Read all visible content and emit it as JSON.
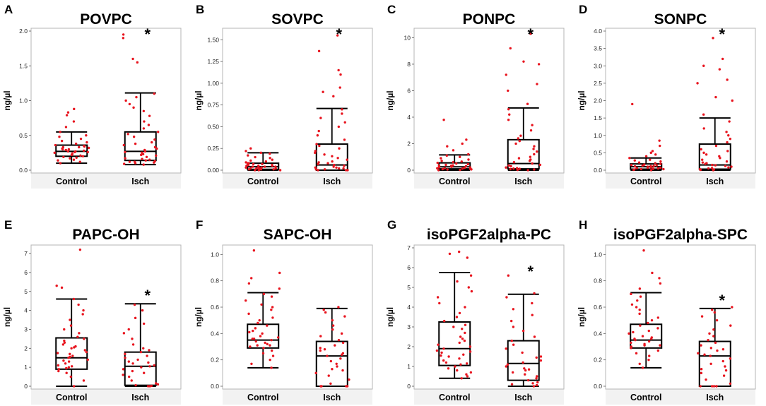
{
  "chart_data": [
    {
      "type": "box",
      "letter": "A",
      "title": "POVPC",
      "ylabel": "ng/µl",
      "ylim": [
        0,
        2.0
      ],
      "yticks": [
        "0.0",
        "0.5",
        "1.0",
        "1.5",
        "2.0"
      ],
      "ytick_values": [
        0,
        0.5,
        1.0,
        1.5,
        2.0
      ],
      "categories": [
        "Control",
        "Isch"
      ],
      "groups": [
        {
          "name": "Control",
          "min": 0.1,
          "q1": 0.2,
          "median": 0.27,
          "q3": 0.36,
          "max": 0.55,
          "points": [
            0.1,
            0.12,
            0.15,
            0.17,
            0.19,
            0.2,
            0.21,
            0.22,
            0.23,
            0.24,
            0.25,
            0.26,
            0.27,
            0.27,
            0.28,
            0.29,
            0.3,
            0.31,
            0.32,
            0.33,
            0.34,
            0.35,
            0.36,
            0.38,
            0.4,
            0.42,
            0.45,
            0.48,
            0.5,
            0.55,
            0.62,
            0.7,
            0.79,
            0.83,
            0.88,
            0.14,
            0.18,
            0.26,
            0.3,
            0.33
          ]
        },
        {
          "name": "Isch",
          "min": 0.08,
          "q1": 0.14,
          "median": 0.27,
          "q3": 0.55,
          "max": 1.11,
          "points": [
            0.08,
            0.09,
            0.1,
            0.11,
            0.12,
            0.13,
            0.14,
            0.15,
            0.17,
            0.19,
            0.21,
            0.23,
            0.25,
            0.27,
            0.29,
            0.31,
            0.33,
            0.36,
            0.4,
            0.44,
            0.48,
            0.52,
            0.55,
            0.6,
            0.65,
            0.7,
            0.78,
            0.85,
            0.9,
            0.95,
            1.0,
            1.05,
            1.1,
            1.55,
            1.6,
            1.9,
            1.95,
            0.16,
            0.22,
            0.38,
            0.12,
            0.26
          ]
        }
      ],
      "significance": {
        "group": "Isch",
        "label": "*"
      }
    },
    {
      "type": "box",
      "letter": "B",
      "title": "SOVPC",
      "ylabel": "ng/µl",
      "ylim": [
        0,
        1.6
      ],
      "yticks": [
        "0.00",
        "0.25",
        "0.50",
        "0.75",
        "1.00",
        "1.25",
        "1.50"
      ],
      "ytick_values": [
        0,
        0.25,
        0.5,
        0.75,
        1.0,
        1.25,
        1.5
      ],
      "categories": [
        "Control",
        "Isch"
      ],
      "groups": [
        {
          "name": "Control",
          "min": 0.0,
          "q1": 0.01,
          "median": 0.04,
          "q3": 0.08,
          "max": 0.2,
          "points": [
            0.0,
            0.0,
            0.01,
            0.01,
            0.01,
            0.02,
            0.02,
            0.02,
            0.03,
            0.03,
            0.03,
            0.04,
            0.04,
            0.04,
            0.05,
            0.05,
            0.06,
            0.06,
            0.07,
            0.07,
            0.08,
            0.08,
            0.09,
            0.1,
            0.11,
            0.12,
            0.14,
            0.15,
            0.17,
            0.19,
            0.2,
            0.22,
            0.25,
            0.0,
            0.02,
            0.05
          ]
        },
        {
          "name": "Isch",
          "min": 0.0,
          "q1": 0.0,
          "median": 0.06,
          "q3": 0.3,
          "max": 0.71,
          "points": [
            0.0,
            0.0,
            0.0,
            0.01,
            0.01,
            0.02,
            0.02,
            0.03,
            0.04,
            0.05,
            0.06,
            0.07,
            0.08,
            0.1,
            0.12,
            0.14,
            0.16,
            0.18,
            0.2,
            0.22,
            0.25,
            0.28,
            0.3,
            0.35,
            0.4,
            0.45,
            0.5,
            0.55,
            0.6,
            0.65,
            0.7,
            0.85,
            0.9,
            0.95,
            1.1,
            1.15,
            1.37,
            1.55,
            0.03,
            0.09
          ]
        }
      ],
      "significance": {
        "group": "Isch",
        "label": "*"
      }
    },
    {
      "type": "box",
      "letter": "C",
      "title": "PONPC",
      "ylabel": "ng/µl",
      "ylim": [
        0,
        10.5
      ],
      "yticks": [
        "0",
        "2",
        "4",
        "6",
        "8",
        "10"
      ],
      "ytick_values": [
        0,
        2,
        4,
        6,
        8,
        10
      ],
      "categories": [
        "Control",
        "Isch"
      ],
      "groups": [
        {
          "name": "Control",
          "min": 0.0,
          "q1": 0.1,
          "median": 0.25,
          "q3": 0.55,
          "max": 1.15,
          "points": [
            0.0,
            0.02,
            0.05,
            0.08,
            0.1,
            0.12,
            0.15,
            0.18,
            0.2,
            0.22,
            0.25,
            0.27,
            0.3,
            0.33,
            0.36,
            0.4,
            0.45,
            0.5,
            0.55,
            0.6,
            0.65,
            0.7,
            0.8,
            0.9,
            1.0,
            1.1,
            1.2,
            1.5,
            1.8,
            2.0,
            2.3,
            3.8,
            0.06,
            0.14,
            0.35
          ]
        },
        {
          "name": "Isch",
          "min": 0.0,
          "q1": 0.1,
          "median": 0.5,
          "q3": 2.3,
          "max": 4.7,
          "points": [
            0.0,
            0.02,
            0.05,
            0.1,
            0.15,
            0.2,
            0.3,
            0.4,
            0.5,
            0.6,
            0.7,
            0.8,
            0.9,
            1.0,
            1.2,
            1.4,
            1.6,
            1.8,
            2.0,
            2.2,
            2.4,
            2.6,
            3.0,
            3.4,
            3.8,
            4.2,
            4.6,
            5.0,
            6.0,
            6.5,
            7.2,
            8.0,
            8.2,
            9.2,
            10.3,
            0.12,
            0.35,
            0.08
          ]
        }
      ],
      "significance": {
        "group": "Isch",
        "label": "*"
      }
    },
    {
      "type": "box",
      "letter": "D",
      "title": "SONPC",
      "ylabel": "ng/µl",
      "ylim": [
        0,
        4.0
      ],
      "yticks": [
        "0.0",
        "0.5",
        "1.0",
        "1.5",
        "2.0",
        "2.5",
        "3.0",
        "3.5",
        "4.0"
      ],
      "ytick_values": [
        0,
        0.5,
        1.0,
        1.5,
        2.0,
        2.5,
        3.0,
        3.5,
        4.0
      ],
      "categories": [
        "Control",
        "Isch"
      ],
      "groups": [
        {
          "name": "Control",
          "min": 0.0,
          "q1": 0.03,
          "median": 0.1,
          "q3": 0.18,
          "max": 0.35,
          "points": [
            0.0,
            0.01,
            0.02,
            0.03,
            0.04,
            0.05,
            0.06,
            0.07,
            0.08,
            0.09,
            0.1,
            0.11,
            0.12,
            0.13,
            0.14,
            0.15,
            0.16,
            0.18,
            0.2,
            0.22,
            0.25,
            0.28,
            0.3,
            0.35,
            0.4,
            0.45,
            0.5,
            0.55,
            0.7,
            0.85,
            1.9,
            0.03,
            0.07,
            0.12
          ]
        },
        {
          "name": "Isch",
          "min": 0.0,
          "q1": 0.03,
          "median": 0.15,
          "q3": 0.75,
          "max": 1.5,
          "points": [
            0.0,
            0.01,
            0.02,
            0.03,
            0.05,
            0.08,
            0.1,
            0.12,
            0.15,
            0.18,
            0.2,
            0.25,
            0.3,
            0.35,
            0.4,
            0.45,
            0.5,
            0.55,
            0.6,
            0.7,
            0.8,
            0.9,
            1.0,
            1.1,
            1.2,
            1.4,
            1.6,
            2.0,
            2.1,
            2.5,
            2.6,
            2.9,
            3.0,
            3.2,
            3.8,
            0.06,
            0.14,
            0.22
          ]
        }
      ],
      "significance": {
        "group": "Isch",
        "label": "*"
      }
    },
    {
      "type": "box",
      "letter": "E",
      "title": "PAPC-OH",
      "ylabel": "ng/µl",
      "ylim": [
        0,
        7.3
      ],
      "yticks": [
        "0",
        "1",
        "2",
        "3",
        "4",
        "5",
        "6",
        "7"
      ],
      "ytick_values": [
        0,
        1,
        2,
        3,
        4,
        5,
        6,
        7
      ],
      "categories": [
        "Control",
        "Isch"
      ],
      "groups": [
        {
          "name": "Control",
          "min": 0.0,
          "q1": 0.9,
          "median": 1.5,
          "q3": 2.55,
          "max": 4.6,
          "points": [
            0.0,
            0.3,
            0.5,
            0.7,
            0.8,
            0.9,
            1.0,
            1.1,
            1.2,
            1.3,
            1.4,
            1.5,
            1.55,
            1.6,
            1.7,
            1.8,
            1.9,
            2.0,
            2.1,
            2.2,
            2.3,
            2.4,
            2.5,
            2.6,
            2.8,
            3.0,
            3.2,
            3.5,
            3.8,
            4.0,
            4.3,
            4.6,
            5.2,
            5.3,
            7.2,
            1.05,
            1.35,
            1.75,
            2.05,
            0.95
          ]
        },
        {
          "name": "Isch",
          "min": 0.0,
          "q1": 0.05,
          "median": 1.05,
          "q3": 1.8,
          "max": 4.35,
          "points": [
            0.0,
            0.0,
            0.02,
            0.05,
            0.1,
            0.3,
            0.5,
            0.7,
            0.8,
            0.9,
            1.0,
            1.05,
            1.1,
            1.2,
            1.3,
            1.4,
            1.5,
            1.6,
            1.7,
            1.8,
            1.9,
            2.0,
            2.2,
            2.5,
            2.8,
            3.0,
            3.3,
            3.6,
            4.0,
            4.3,
            0.6,
            1.25,
            0.15
          ]
        }
      ],
      "significance": {
        "group": "Isch",
        "label": "*"
      }
    },
    {
      "type": "box",
      "letter": "F",
      "title": "SAPC-OH",
      "ylabel": "ng/µl",
      "ylim": [
        0,
        1.05
      ],
      "yticks": [
        "0.0",
        "0.2",
        "0.4",
        "0.6",
        "0.8",
        "1.0"
      ],
      "ytick_values": [
        0,
        0.2,
        0.4,
        0.6,
        0.8,
        1.0
      ],
      "categories": [
        "Control",
        "Isch"
      ],
      "groups": [
        {
          "name": "Control",
          "min": 0.14,
          "q1": 0.29,
          "median": 0.35,
          "q3": 0.47,
          "max": 0.71,
          "points": [
            0.14,
            0.17,
            0.2,
            0.23,
            0.25,
            0.27,
            0.29,
            0.3,
            0.31,
            0.32,
            0.33,
            0.34,
            0.35,
            0.36,
            0.37,
            0.38,
            0.4,
            0.42,
            0.44,
            0.46,
            0.48,
            0.5,
            0.52,
            0.55,
            0.58,
            0.6,
            0.62,
            0.65,
            0.68,
            0.7,
            0.74,
            0.78,
            0.82,
            0.86,
            1.03,
            0.31,
            0.36,
            0.41
          ]
        },
        {
          "name": "Isch",
          "min": 0.0,
          "q1": 0.0,
          "median": 0.23,
          "q3": 0.34,
          "max": 0.59,
          "points": [
            0.0,
            0.0,
            0.0,
            0.0,
            0.02,
            0.05,
            0.08,
            0.1,
            0.13,
            0.15,
            0.17,
            0.19,
            0.21,
            0.23,
            0.24,
            0.25,
            0.27,
            0.29,
            0.31,
            0.33,
            0.35,
            0.38,
            0.4,
            0.43,
            0.46,
            0.5,
            0.53,
            0.56,
            0.58,
            0.6,
            0.12,
            0.28
          ]
        }
      ],
      "significance": null
    },
    {
      "type": "box",
      "letter": "G",
      "title": "isoPGF2alpha-PC",
      "ylabel": "ng/µl",
      "ylim": [
        0,
        7.0
      ],
      "yticks": [
        "0",
        "1",
        "2",
        "3",
        "4",
        "5",
        "6",
        "7"
      ],
      "ytick_values": [
        0,
        1,
        2,
        3,
        4,
        5,
        6,
        7
      ],
      "categories": [
        "Control",
        "Isch"
      ],
      "groups": [
        {
          "name": "Control",
          "min": 0.4,
          "q1": 1.05,
          "median": 1.9,
          "q3": 3.25,
          "max": 5.75,
          "points": [
            0.4,
            0.5,
            0.6,
            0.8,
            0.9,
            1.0,
            1.1,
            1.2,
            1.3,
            1.4,
            1.5,
            1.6,
            1.7,
            1.8,
            1.9,
            2.0,
            2.1,
            2.2,
            2.3,
            2.5,
            2.7,
            2.9,
            3.1,
            3.3,
            3.5,
            3.7,
            4.0,
            4.2,
            4.5,
            4.8,
            5.0,
            5.3,
            5.6,
            6.5,
            6.7,
            6.8,
            1.15,
            1.75,
            2.4,
            3.0,
            0.7,
            1.55
          ]
        },
        {
          "name": "Isch",
          "min": 0.0,
          "q1": 0.3,
          "median": 1.15,
          "q3": 2.3,
          "max": 4.65,
          "points": [
            0.0,
            0.05,
            0.1,
            0.2,
            0.3,
            0.4,
            0.5,
            0.6,
            0.7,
            0.8,
            0.9,
            1.0,
            1.1,
            1.2,
            1.3,
            1.5,
            1.7,
            1.9,
            2.1,
            2.3,
            2.5,
            2.8,
            3.0,
            3.3,
            3.6,
            3.9,
            4.2,
            4.5,
            4.7,
            5.6,
            0.15,
            0.85,
            1.45
          ]
        }
      ],
      "significance": {
        "group": "Isch",
        "label": "*"
      }
    },
    {
      "type": "box",
      "letter": "H",
      "title": "isoPGF2alpha-SPC",
      "ylabel": "ng/µl",
      "ylim": [
        0,
        1.05
      ],
      "yticks": [
        "0.0",
        "0.2",
        "0.4",
        "0.6",
        "0.8",
        "1.0"
      ],
      "ytick_values": [
        0,
        0.2,
        0.4,
        0.6,
        0.8,
        1.0
      ],
      "categories": [
        "Control",
        "Isch"
      ],
      "groups": [
        {
          "name": "Control",
          "min": 0.14,
          "q1": 0.29,
          "median": 0.35,
          "q3": 0.47,
          "max": 0.71,
          "points": [
            0.14,
            0.17,
            0.2,
            0.23,
            0.25,
            0.27,
            0.29,
            0.3,
            0.31,
            0.32,
            0.33,
            0.34,
            0.35,
            0.36,
            0.37,
            0.38,
            0.4,
            0.42,
            0.44,
            0.46,
            0.48,
            0.5,
            0.52,
            0.55,
            0.58,
            0.6,
            0.62,
            0.65,
            0.68,
            0.7,
            0.74,
            0.78,
            0.82,
            0.86,
            1.03,
            0.31,
            0.36,
            0.41
          ]
        },
        {
          "name": "Isch",
          "min": 0.0,
          "q1": 0.0,
          "median": 0.23,
          "q3": 0.34,
          "max": 0.59,
          "points": [
            0.0,
            0.0,
            0.0,
            0.0,
            0.02,
            0.05,
            0.08,
            0.1,
            0.13,
            0.15,
            0.17,
            0.19,
            0.21,
            0.23,
            0.24,
            0.25,
            0.27,
            0.29,
            0.31,
            0.33,
            0.35,
            0.38,
            0.4,
            0.43,
            0.46,
            0.5,
            0.53,
            0.56,
            0.58,
            0.6,
            0.12,
            0.28
          ]
        }
      ],
      "significance": {
        "group": "Isch",
        "label": "*"
      }
    }
  ],
  "colors": {
    "point": "#e8141e",
    "box": "#000000",
    "frame": "#b5b5b5",
    "axis_band": "#f2f2f2"
  }
}
